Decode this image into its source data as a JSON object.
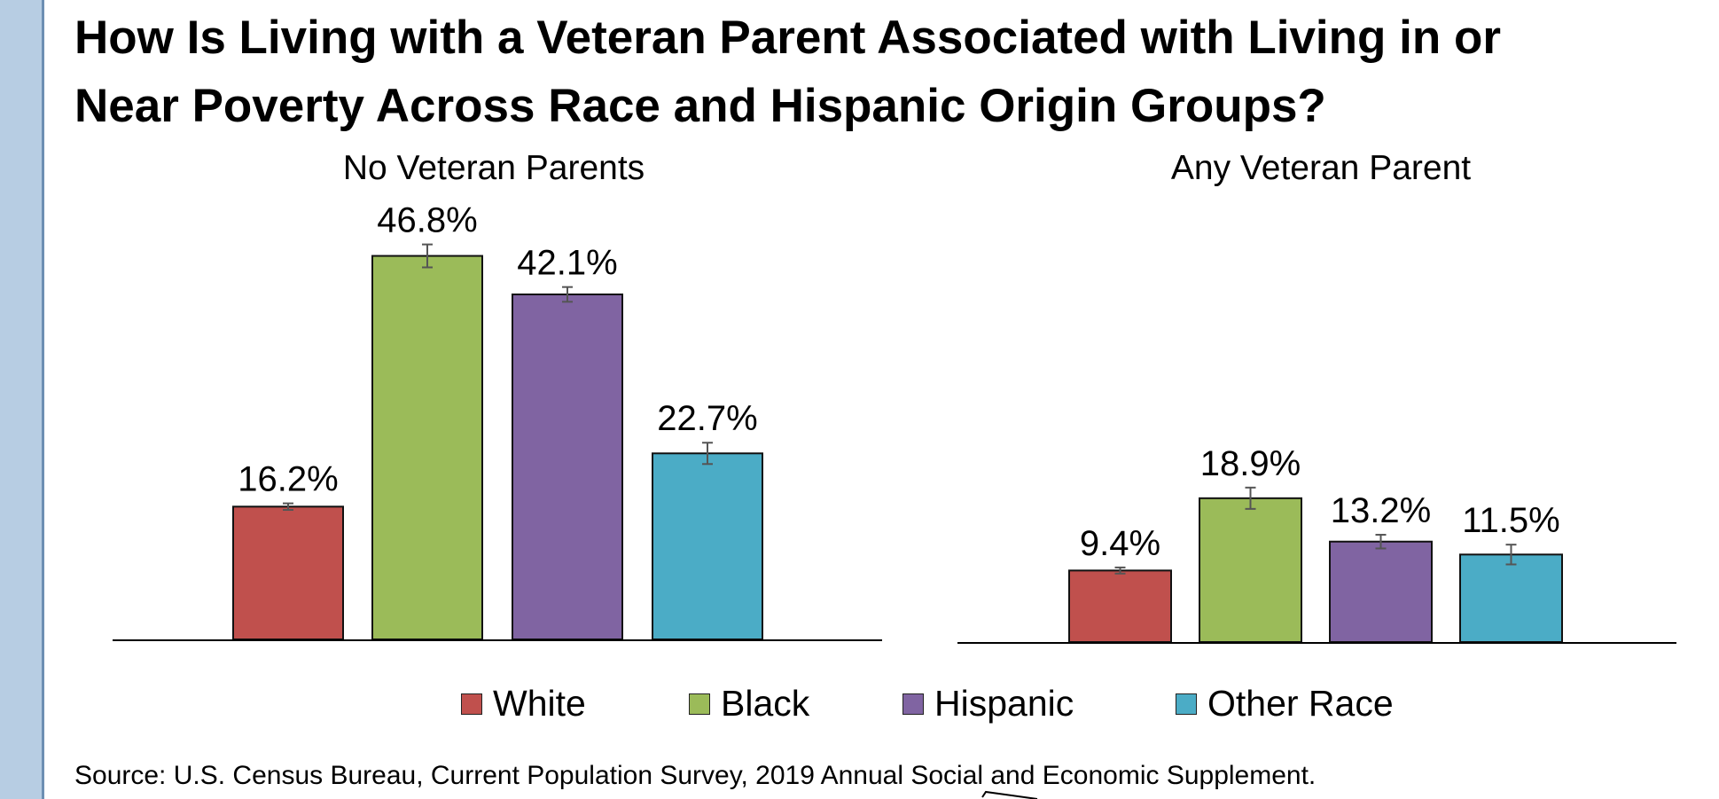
{
  "title_lines": [
    "How Is Living with a Veteran Parent Associated with Living in or",
    "Near Poverty Across Race and Hispanic Origin Groups?"
  ],
  "source": "Source: U.S. Census Bureau, Current Population Survey, 2019 Annual Social and Economic Supplement.",
  "legend": [
    {
      "label": "White",
      "color": "#c0504d"
    },
    {
      "label": "Black",
      "color": "#9bbb59"
    },
    {
      "label": "Hispanic",
      "color": "#8064a2"
    },
    {
      "label": "Other Race",
      "color": "#4bacc6"
    }
  ],
  "chart_data": [
    {
      "type": "bar",
      "title": "No Veteran Parents",
      "categories": [
        "White",
        "Black",
        "Hispanic",
        "Other Race"
      ],
      "values": [
        16.2,
        46.8,
        42.1,
        22.7
      ],
      "labels": [
        "16.2%",
        "46.8%",
        "42.1%",
        "22.7%"
      ],
      "error": [
        0.4,
        1.4,
        0.9,
        1.3
      ],
      "colors": [
        "#c0504d",
        "#9bbb59",
        "#8064a2",
        "#4bacc6"
      ],
      "ylim": [
        0,
        50
      ],
      "grid": false
    },
    {
      "type": "bar",
      "title": "Any Veteran Parent",
      "categories": [
        "White",
        "Black",
        "Hispanic",
        "Other Race"
      ],
      "values": [
        9.4,
        18.9,
        13.2,
        11.5
      ],
      "labels": [
        "9.4%",
        "18.9%",
        "13.2%",
        "11.5%"
      ],
      "error": [
        0.4,
        1.4,
        0.9,
        1.3
      ],
      "colors": [
        "#c0504d",
        "#9bbb59",
        "#8064a2",
        "#4bacc6"
      ],
      "ylim": [
        0,
        50
      ],
      "grid": false
    }
  ]
}
